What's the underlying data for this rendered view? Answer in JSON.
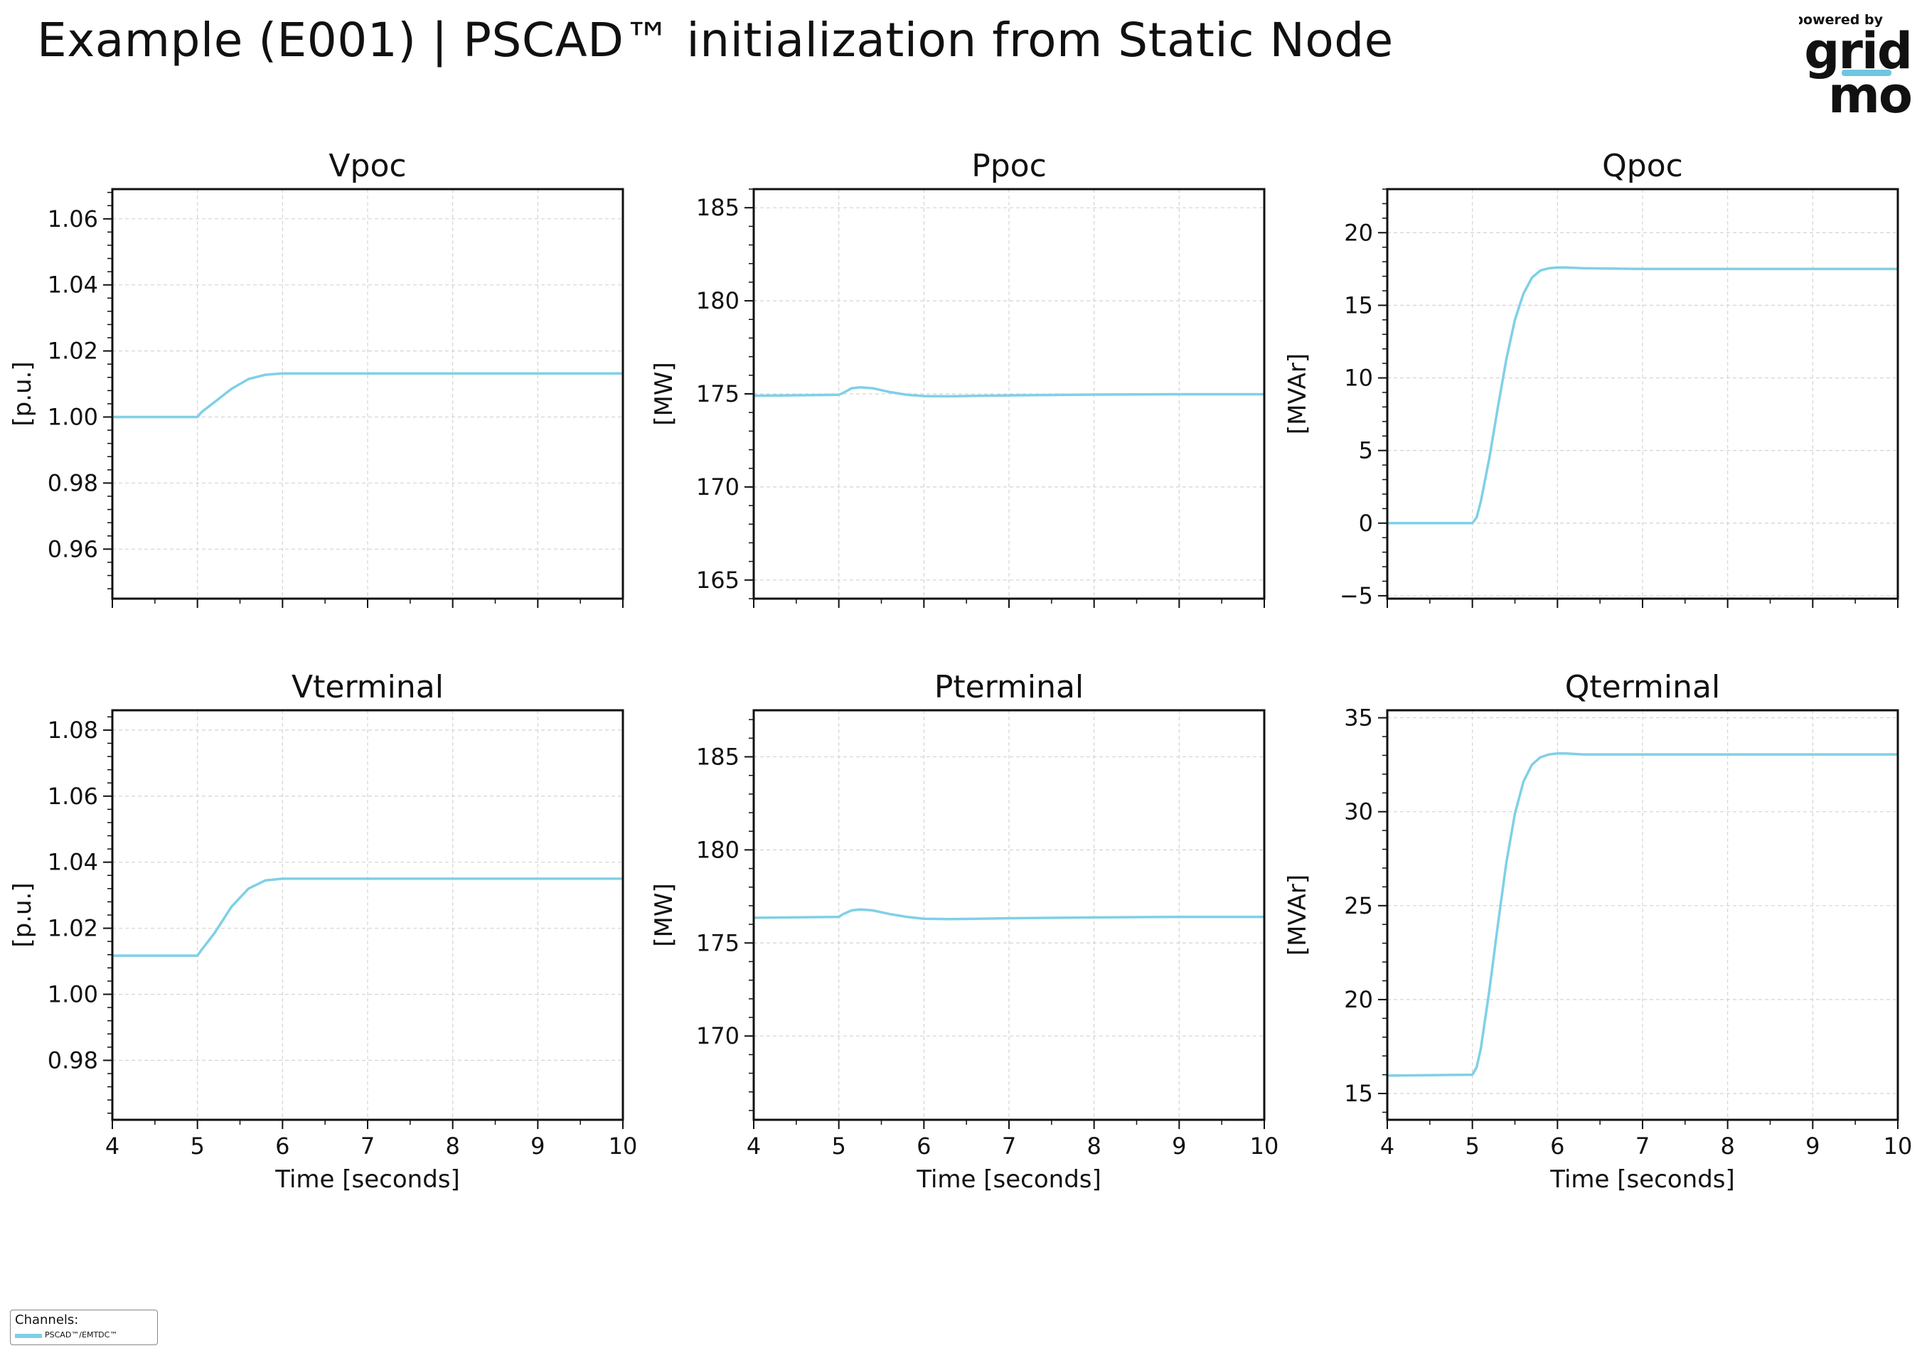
{
  "page_title": "Example (E001) | PSCAD™ initialization from Static Node",
  "logo": {
    "top_text": "powered by",
    "word_1": "grid",
    "word_2": "mo",
    "color_dark": "#111111",
    "color_accent": "#6EC6E0"
  },
  "legend": {
    "title": "Channels:",
    "entries": [
      {
        "label": "PSCAD™/EMTDC™",
        "color": "#7FD0E6"
      }
    ]
  },
  "series_color": "#7FD0E6",
  "chart_data": [
    {
      "type": "line",
      "title": "Vpoc",
      "xlabel": "",
      "ylabel": "[p.u.]",
      "xlim": [
        4,
        10
      ],
      "ylim": [
        0.945,
        1.069
      ],
      "xticks": [
        4,
        5,
        6,
        7,
        8,
        9,
        10
      ],
      "yticks": [
        0.96,
        0.98,
        1.0,
        1.02,
        1.04,
        1.06
      ],
      "ytick_labels": [
        "0.96",
        "0.98",
        "1.00",
        "1.02",
        "1.04",
        "1.06"
      ],
      "show_xtick_labels": false,
      "grid": true,
      "series": [
        {
          "name": "PSCAD™/EMTDC™",
          "x": [
            4,
            5,
            5.05,
            5.2,
            5.4,
            5.6,
            5.8,
            6,
            6.5,
            7,
            8,
            9,
            10
          ],
          "y": [
            1.0,
            1.0,
            1.0015,
            1.0045,
            1.0085,
            1.0115,
            1.0128,
            1.0132,
            1.0132,
            1.0132,
            1.0132,
            1.0132,
            1.0132
          ]
        }
      ]
    },
    {
      "type": "line",
      "title": "Ppoc",
      "xlabel": "",
      "ylabel": "[MW]",
      "xlim": [
        4,
        10
      ],
      "ylim": [
        164,
        186
      ],
      "xticks": [
        4,
        5,
        6,
        7,
        8,
        9,
        10
      ],
      "yticks": [
        165,
        170,
        175,
        180,
        185
      ],
      "ytick_labels": [
        "165",
        "170",
        "175",
        "180",
        "185"
      ],
      "show_xtick_labels": false,
      "grid": true,
      "series": [
        {
          "name": "PSCAD™/EMTDC™",
          "x": [
            4,
            5,
            5.05,
            5.15,
            5.25,
            5.4,
            5.6,
            5.8,
            6,
            6.3,
            7,
            8,
            9,
            10
          ],
          "y": [
            174.9,
            174.95,
            175.05,
            175.3,
            175.35,
            175.3,
            175.1,
            174.95,
            174.88,
            174.87,
            174.92,
            174.96,
            174.98,
            174.98
          ]
        }
      ]
    },
    {
      "type": "line",
      "title": "Qpoc",
      "xlabel": "",
      "ylabel": "[MVAr]",
      "xlim": [
        4,
        10
      ],
      "ylim": [
        -5.2,
        23
      ],
      "xticks": [
        4,
        5,
        6,
        7,
        8,
        9,
        10
      ],
      "yticks": [
        -5,
        0,
        5,
        10,
        15,
        20
      ],
      "ytick_labels": [
        "−5",
        "0",
        "5",
        "10",
        "15",
        "20"
      ],
      "show_xtick_labels": false,
      "grid": true,
      "series": [
        {
          "name": "PSCAD™/EMTDC™",
          "x": [
            4,
            5,
            5.05,
            5.1,
            5.2,
            5.3,
            5.4,
            5.5,
            5.6,
            5.7,
            5.8,
            5.9,
            6,
            6.1,
            6.3,
            7,
            8,
            9,
            10
          ],
          "y": [
            0,
            0,
            0.4,
            1.5,
            4.5,
            8.0,
            11.3,
            14.0,
            15.8,
            16.9,
            17.4,
            17.55,
            17.6,
            17.6,
            17.55,
            17.5,
            17.5,
            17.5,
            17.5
          ]
        }
      ]
    },
    {
      "type": "line",
      "title": "Vterminal",
      "xlabel": "Time [seconds]",
      "ylabel": "[p.u.]",
      "xlim": [
        4,
        10
      ],
      "ylim": [
        0.962,
        1.086
      ],
      "xticks": [
        4,
        5,
        6,
        7,
        8,
        9,
        10
      ],
      "yticks": [
        0.98,
        1.0,
        1.02,
        1.04,
        1.06,
        1.08
      ],
      "ytick_labels": [
        "0.98",
        "1.00",
        "1.02",
        "1.04",
        "1.06",
        "1.08"
      ],
      "show_xtick_labels": true,
      "grid": true,
      "series": [
        {
          "name": "PSCAD™/EMTDC™",
          "x": [
            4,
            5,
            5.05,
            5.2,
            5.4,
            5.6,
            5.8,
            6,
            6.5,
            7,
            8,
            9,
            10
          ],
          "y": [
            1.0117,
            1.0117,
            1.0135,
            1.0185,
            1.0265,
            1.032,
            1.0345,
            1.035,
            1.035,
            1.035,
            1.035,
            1.035,
            1.035
          ]
        }
      ]
    },
    {
      "type": "line",
      "title": "Pterminal",
      "xlabel": "Time [seconds]",
      "ylabel": "[MW]",
      "xlim": [
        4,
        10
      ],
      "ylim": [
        165.5,
        187.5
      ],
      "xticks": [
        4,
        5,
        6,
        7,
        8,
        9,
        10
      ],
      "yticks": [
        170,
        175,
        180,
        185
      ],
      "ytick_labels": [
        "170",
        "175",
        "180",
        "185"
      ],
      "show_xtick_labels": true,
      "grid": true,
      "series": [
        {
          "name": "PSCAD™/EMTDC™",
          "x": [
            4,
            5,
            5.05,
            5.15,
            5.25,
            5.4,
            5.6,
            5.8,
            6,
            6.3,
            7,
            8,
            9,
            10
          ],
          "y": [
            176.35,
            176.4,
            176.55,
            176.75,
            176.8,
            176.75,
            176.55,
            176.4,
            176.3,
            176.28,
            176.33,
            176.37,
            176.4,
            176.4
          ]
        }
      ]
    },
    {
      "type": "line",
      "title": "Qterminal",
      "xlabel": "Time [seconds]",
      "ylabel": "[MVAr]",
      "xlim": [
        4,
        10
      ],
      "ylim": [
        13.6,
        35.4
      ],
      "xticks": [
        4,
        5,
        6,
        7,
        8,
        9,
        10
      ],
      "yticks": [
        15,
        20,
        25,
        30,
        35
      ],
      "ytick_labels": [
        "15",
        "20",
        "25",
        "30",
        "35"
      ],
      "show_xtick_labels": true,
      "grid": true,
      "series": [
        {
          "name": "PSCAD™/EMTDC™",
          "x": [
            4,
            5,
            5.05,
            5.1,
            5.2,
            5.3,
            5.4,
            5.5,
            5.6,
            5.7,
            5.8,
            5.9,
            6,
            6.1,
            6.3,
            7,
            8,
            9,
            10
          ],
          "y": [
            15.95,
            16.0,
            16.4,
            17.4,
            20.5,
            24.0,
            27.3,
            29.9,
            31.6,
            32.5,
            32.9,
            33.05,
            33.1,
            33.1,
            33.05,
            33.05,
            33.05,
            33.05,
            33.05
          ]
        }
      ]
    }
  ]
}
